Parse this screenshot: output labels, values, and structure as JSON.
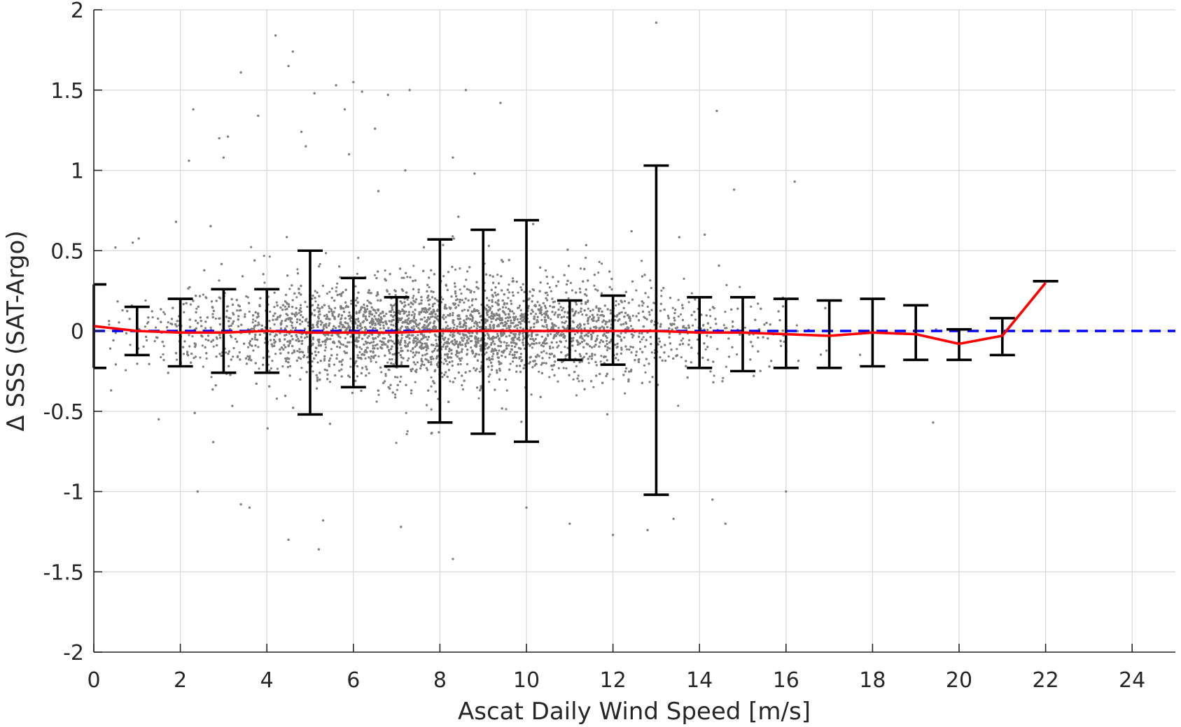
{
  "chart_data": {
    "type": "scatter",
    "xlabel": "Ascat Daily Wind Speed [m/s]",
    "ylabel": "Δ SSS (SAT-Argo)",
    "xlim": [
      0,
      25
    ],
    "ylim": [
      -2,
      2
    ],
    "x_ticks": [
      0,
      2,
      4,
      6,
      8,
      10,
      12,
      14,
      16,
      18,
      20,
      22,
      24
    ],
    "y_ticks": [
      -2,
      -1.5,
      -1,
      -0.5,
      0,
      0.5,
      1,
      1.5,
      2
    ],
    "x_tick_labels": [
      "0",
      "2",
      "4",
      "6",
      "8",
      "10",
      "12",
      "14",
      "16",
      "18",
      "20",
      "22",
      "24"
    ],
    "y_tick_labels": [
      "-2",
      "-1.5",
      "-1",
      "-0.5",
      "0",
      "0.5",
      "1",
      "1.5",
      "2"
    ],
    "grid": true,
    "legend": "none",
    "colors": {
      "scatter": "#808080",
      "errorbar": "#000000",
      "mean_line": "#ff0000",
      "zero_line": "#0000ff"
    },
    "reference_line": {
      "y": 0,
      "style": "dashed",
      "color": "#0000ff"
    },
    "binned_stats": {
      "x": [
        0,
        1,
        2,
        3,
        4,
        5,
        6,
        7,
        8,
        9,
        10,
        11,
        12,
        13,
        14,
        15,
        16,
        17,
        18,
        19,
        20,
        21,
        22
      ],
      "mean": [
        0.03,
        0.0,
        -0.01,
        -0.01,
        0.0,
        -0.01,
        -0.01,
        -0.01,
        0.0,
        0.0,
        0.0,
        0.0,
        0.0,
        0.0,
        -0.01,
        -0.01,
        -0.02,
        -0.03,
        -0.01,
        -0.02,
        -0.08,
        -0.03,
        0.3
      ],
      "error_upper": [
        0.29,
        0.15,
        0.2,
        0.26,
        0.26,
        0.5,
        0.33,
        0.21,
        0.57,
        0.63,
        0.69,
        0.19,
        0.22,
        1.03,
        0.21,
        0.21,
        0.2,
        0.19,
        0.2,
        0.16,
        0.01,
        0.08,
        0.31
      ],
      "error_lower": [
        -0.23,
        -0.15,
        -0.22,
        -0.26,
        -0.26,
        -0.52,
        -0.35,
        -0.22,
        -0.57,
        -0.64,
        -0.69,
        -0.18,
        -0.21,
        -1.02,
        -0.23,
        -0.25,
        -0.23,
        -0.23,
        -0.22,
        -0.18,
        -0.18,
        -0.15,
        0.31
      ]
    },
    "scatter_outliers": [
      [
        4.2,
        1.84
      ],
      [
        4.6,
        1.74
      ],
      [
        4.5,
        1.65
      ],
      [
        3.4,
        1.61
      ],
      [
        6.0,
        1.55
      ],
      [
        5.6,
        1.53
      ],
      [
        6.2,
        1.49
      ],
      [
        7.3,
        1.5
      ],
      [
        8.6,
        1.5
      ],
      [
        9.4,
        1.42
      ],
      [
        13.0,
        1.92
      ],
      [
        14.4,
        1.37
      ],
      [
        5.1,
        1.48
      ],
      [
        6.8,
        1.47
      ],
      [
        2.3,
        1.38
      ],
      [
        3.1,
        1.21
      ],
      [
        2.9,
        1.2
      ],
      [
        3.8,
        1.34
      ],
      [
        5.8,
        1.38
      ],
      [
        6.5,
        1.26
      ],
      [
        4.8,
        1.24
      ],
      [
        4.9,
        1.15
      ],
      [
        5.9,
        1.1
      ],
      [
        2.2,
        1.06
      ],
      [
        3.0,
        1.08
      ],
      [
        8.3,
        1.08
      ],
      [
        8.8,
        0.98
      ],
      [
        14.8,
        0.88
      ],
      [
        16.2,
        0.93
      ],
      [
        7.2,
        1.0
      ],
      [
        1.9,
        0.68
      ],
      [
        0.5,
        0.52
      ],
      [
        0.9,
        0.55
      ],
      [
        3.6,
        -1.1
      ],
      [
        2.4,
        -1.0
      ],
      [
        3.4,
        -1.08
      ],
      [
        5.3,
        -1.18
      ],
      [
        7.1,
        -1.22
      ],
      [
        4.5,
        -1.3
      ],
      [
        5.2,
        -1.36
      ],
      [
        8.3,
        -1.42
      ],
      [
        12.0,
        -1.27
      ],
      [
        11.0,
        -1.2
      ],
      [
        12.8,
        -1.24
      ],
      [
        13.4,
        -1.17
      ],
      [
        14.3,
        -1.05
      ],
      [
        14.6,
        -1.2
      ],
      [
        16.0,
        -1.0
      ],
      [
        19.4,
        -0.57
      ],
      [
        0.4,
        -0.37
      ],
      [
        10.0,
        -1.1
      ],
      [
        1.5,
        -0.55
      ]
    ]
  }
}
